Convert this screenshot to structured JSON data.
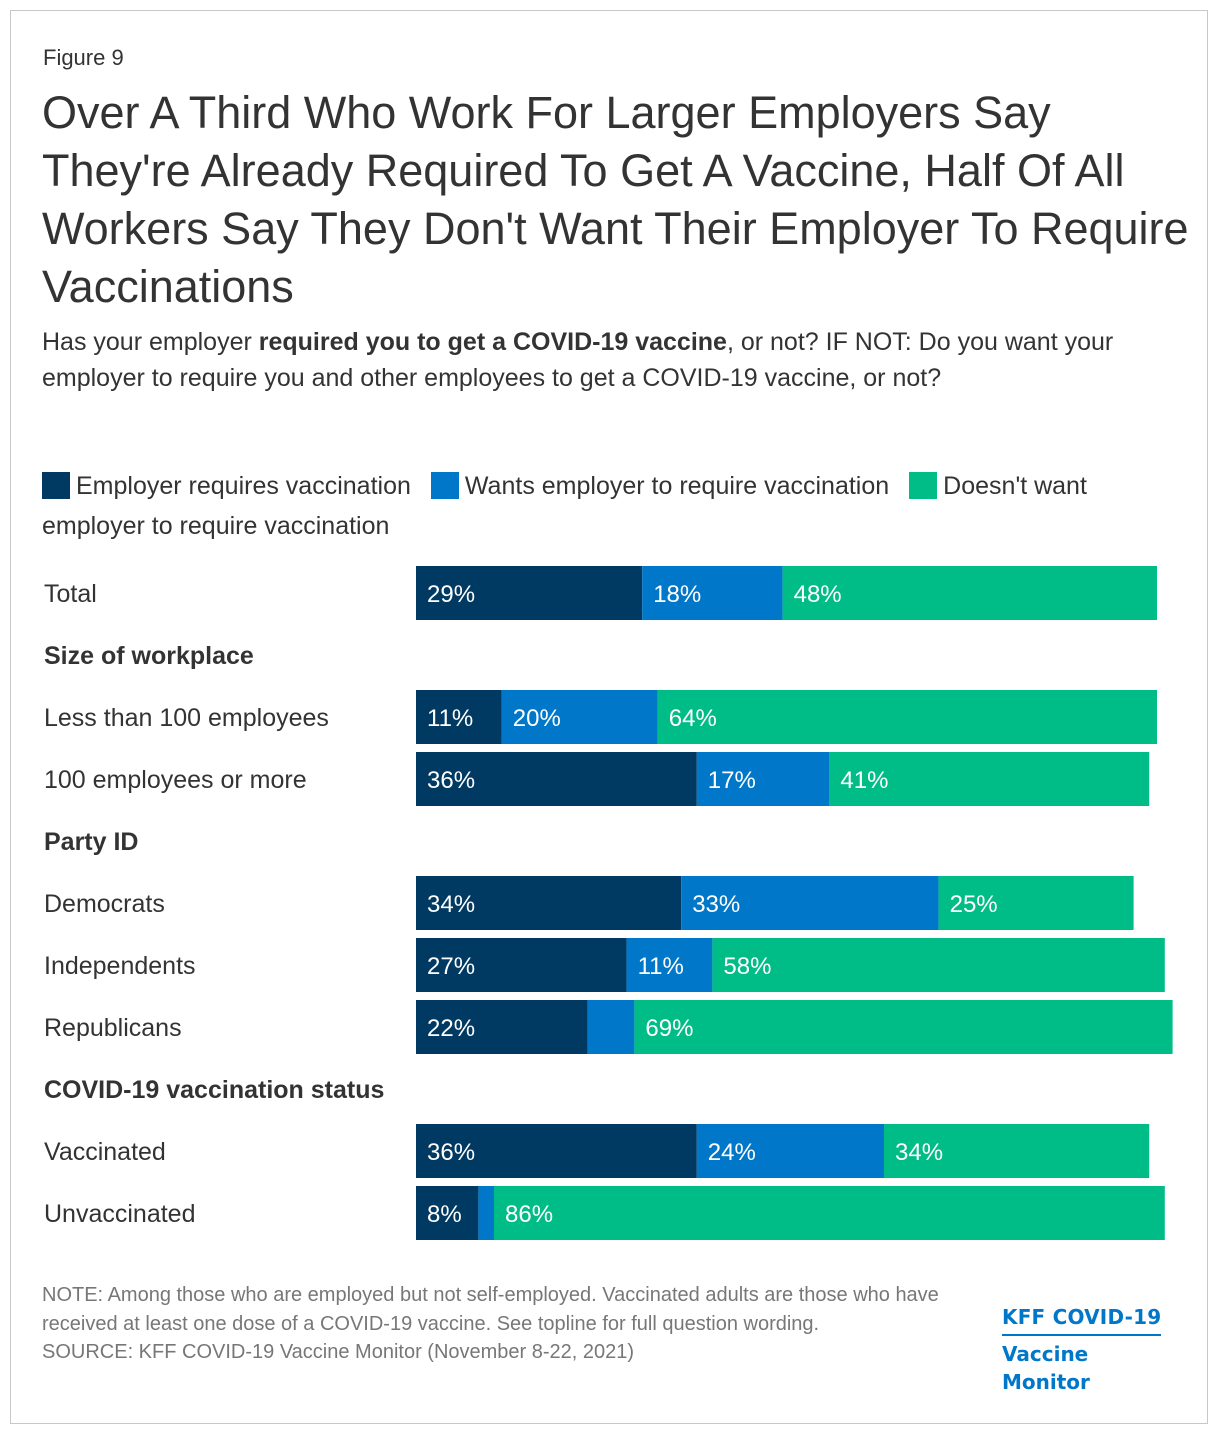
{
  "figure_label": "Figure 9",
  "title": "Over A Third Who Work For Larger Employers Say They're Already Required To Get A Vaccine, Half Of All Workers Say They Don't Want Their Employer To Require Vaccinations",
  "subtitle": {
    "pre": "Has your employer ",
    "bold": "required you to get a COVID-19 vaccine",
    "post": ", or not? IF NOT: Do you want your employer to require you and other employees to get a COVID-19 vaccine, or not?"
  },
  "colors": {
    "requires": "#003a63",
    "wants": "#0077c8",
    "doesnt_want": "#00bd87",
    "label_text": "#ffffff"
  },
  "footer": {
    "note": "NOTE: Among those who are employed but not self-employed. Vaccinated adults are those who have received at least one dose of a COVID-19 vaccine. See topline for full question wording.",
    "source": "SOURCE: KFF COVID-19 Vaccine Monitor (November 8-22, 2021)"
  },
  "logo": {
    "line1": "KFF COVID-19",
    "line2": "Vaccine Monitor"
  },
  "chart_data": {
    "type": "bar",
    "orientation": "horizontal",
    "stacked": true,
    "unit": "%",
    "legend": [
      {
        "key": "requires",
        "label": "Employer requires vaccination"
      },
      {
        "key": "wants",
        "label": "Wants employer to require vaccination"
      },
      {
        "key": "doesnt_want",
        "label": "Doesn't want employer to require vaccination"
      }
    ],
    "series": [
      {
        "name": "Employer requires vaccination",
        "key": "requires"
      },
      {
        "name": "Wants employer to require vaccination",
        "key": "wants"
      },
      {
        "name": "Doesn't want employer to require vaccination",
        "key": "doesnt_want"
      }
    ],
    "rows": [
      {
        "kind": "bar",
        "label": "Total",
        "values": [
          29,
          18,
          48
        ],
        "labels": [
          "29%",
          "18%",
          "48%"
        ]
      },
      {
        "kind": "header",
        "label": "Size of workplace"
      },
      {
        "kind": "bar",
        "label": "Less than 100 employees",
        "values": [
          11,
          20,
          64
        ],
        "labels": [
          "11%",
          "20%",
          "64%"
        ]
      },
      {
        "kind": "bar",
        "label": "100 employees or more",
        "values": [
          36,
          17,
          41
        ],
        "labels": [
          "36%",
          "17%",
          "41%"
        ]
      },
      {
        "kind": "header",
        "label": "Party ID"
      },
      {
        "kind": "bar",
        "label": "Democrats",
        "values": [
          34,
          33,
          25
        ],
        "labels": [
          "34%",
          "33%",
          "25%"
        ]
      },
      {
        "kind": "bar",
        "label": "Independents",
        "values": [
          27,
          11,
          58
        ],
        "labels": [
          "27%",
          "11%",
          "58%"
        ]
      },
      {
        "kind": "bar",
        "label": "Republicans",
        "values": [
          22,
          6,
          69
        ],
        "labels": [
          "22%",
          "",
          "69%"
        ]
      },
      {
        "kind": "header",
        "label": "COVID-19 vaccination status"
      },
      {
        "kind": "bar",
        "label": "Vaccinated",
        "values": [
          36,
          24,
          34
        ],
        "labels": [
          "36%",
          "24%",
          "34%"
        ]
      },
      {
        "kind": "bar",
        "label": "Unvaccinated",
        "values": [
          8,
          2,
          86
        ],
        "labels": [
          "8%",
          "",
          "86%"
        ]
      }
    ]
  }
}
